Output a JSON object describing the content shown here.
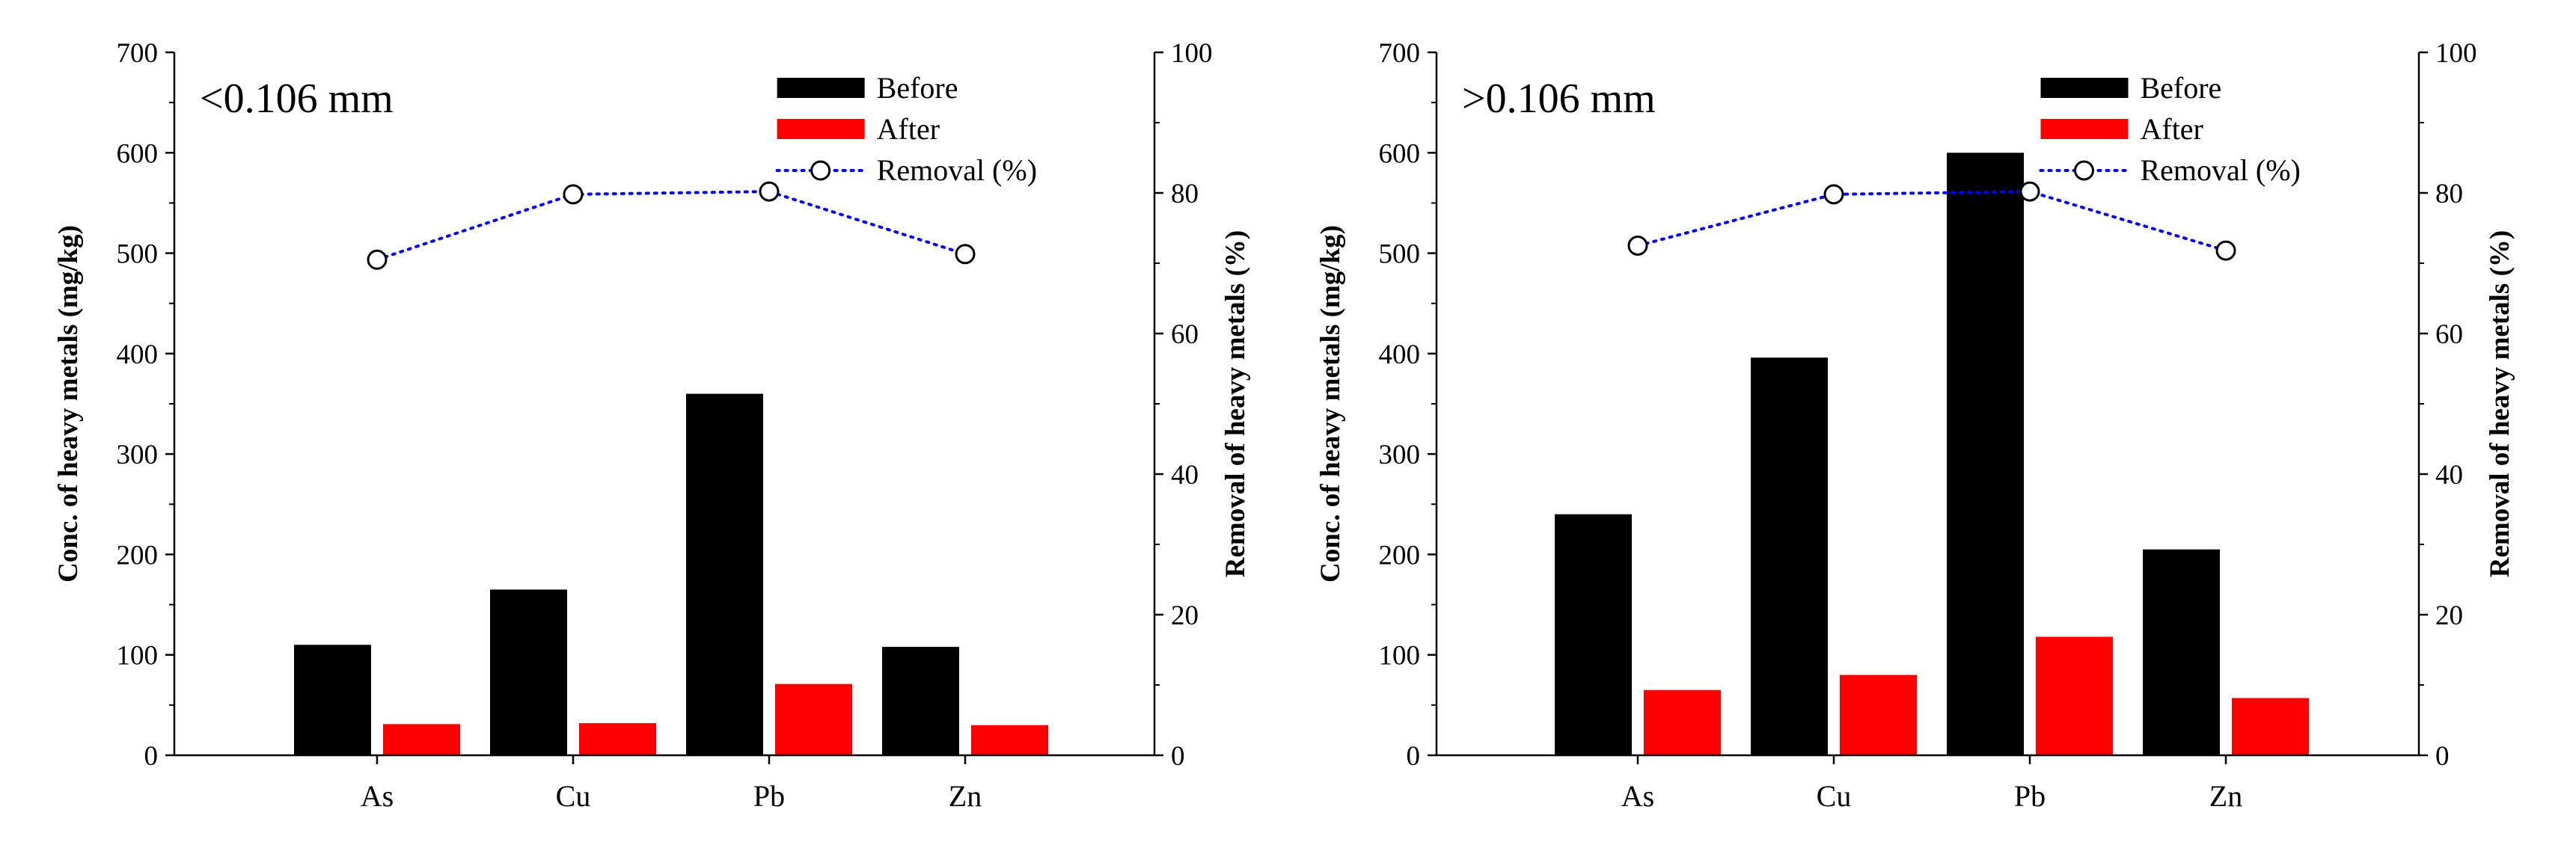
{
  "colors": {
    "before": "#000000",
    "after": "#ff0000",
    "removal_line": "#0000ff",
    "axis": "#000000"
  },
  "legend": {
    "before": "Before",
    "after": "After",
    "removal": "Removal (%)"
  },
  "chart_data": [
    {
      "type": "bar",
      "title": "<0.106 mm",
      "categories": [
        "As",
        "Cu",
        "Pb",
        "Zn"
      ],
      "series": [
        {
          "name": "Before",
          "axis": "left",
          "values": [
            110,
            165,
            360,
            108
          ]
        },
        {
          "name": "After",
          "axis": "left",
          "values": [
            31,
            32,
            71,
            30
          ]
        },
        {
          "name": "Removal (%)",
          "axis": "right",
          "type": "line",
          "marker": "open-circle",
          "style": "dotted",
          "values": [
            70.5,
            79.8,
            80.2,
            71.3
          ]
        }
      ],
      "ylabel": "Conc. of heavy metals (mg/kg)",
      "ylabel_right": "Removal of heavy metals (%)",
      "ylim": [
        0,
        700
      ],
      "ylim_right": [
        0,
        100
      ],
      "yticks": [
        "0",
        "100",
        "200",
        "300",
        "400",
        "500",
        "600",
        "700"
      ],
      "yticks_right": [
        "0",
        "20",
        "40",
        "60",
        "80",
        "100"
      ],
      "legend_position": "top-right",
      "grid": false
    },
    {
      "type": "bar",
      "title": ">0.106 mm",
      "categories": [
        "As",
        "Cu",
        "Pb",
        "Zn"
      ],
      "series": [
        {
          "name": "Before",
          "axis": "left",
          "values": [
            240,
            396,
            600,
            205
          ]
        },
        {
          "name": "After",
          "axis": "left",
          "values": [
            65,
            80,
            118,
            57
          ]
        },
        {
          "name": "Removal (%)",
          "axis": "right",
          "type": "line",
          "marker": "open-circle",
          "style": "dotted",
          "values": [
            72.5,
            79.8,
            80.2,
            71.8
          ]
        }
      ],
      "ylabel": "Conc. of heavy metals (mg/kg)",
      "ylabel_right": "Removal of heavy metals (%)",
      "ylim": [
        0,
        700
      ],
      "ylim_right": [
        0,
        100
      ],
      "yticks": [
        "0",
        "100",
        "200",
        "300",
        "400",
        "500",
        "600",
        "700"
      ],
      "yticks_right": [
        "0",
        "20",
        "40",
        "60",
        "80",
        "100"
      ],
      "legend_position": "top-right",
      "grid": false
    }
  ]
}
